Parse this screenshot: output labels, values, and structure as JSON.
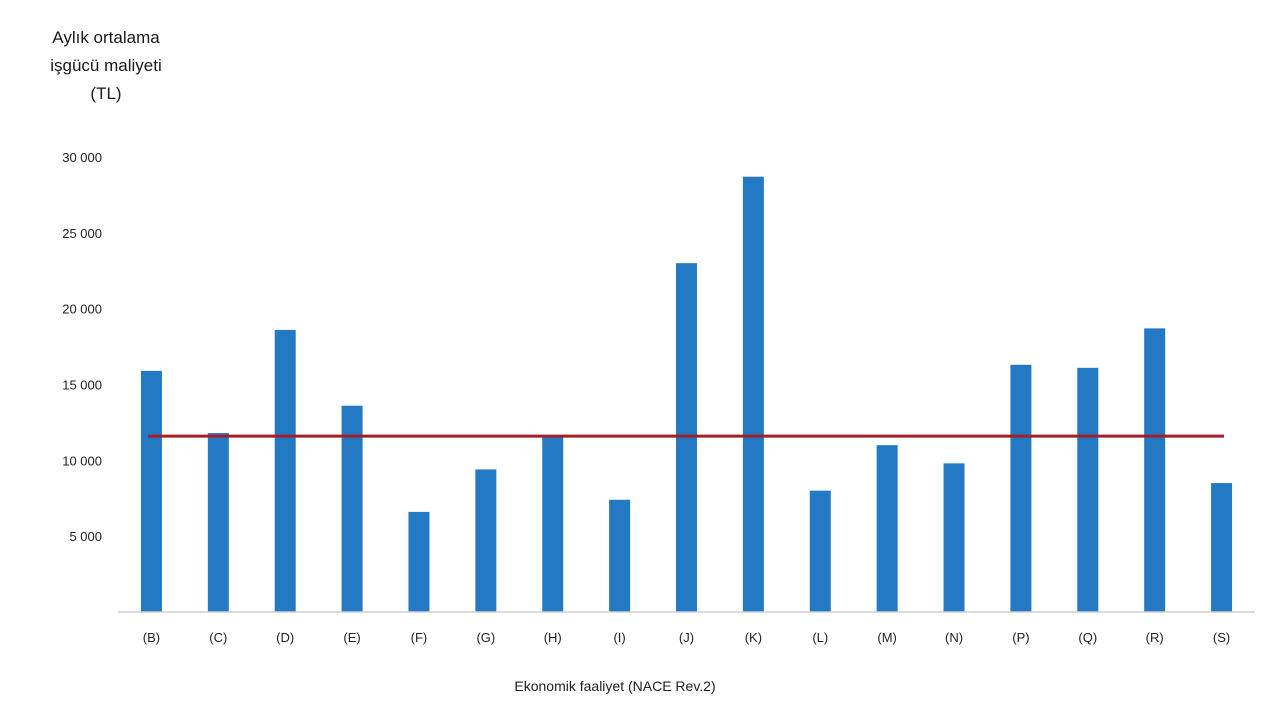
{
  "chart_data": {
    "type": "bar",
    "ylabel_lines": [
      "Aylık ortalama",
      "işgücü maliyeti",
      "(TL)"
    ],
    "xlabel": "Ekonomik faaliyet (NACE Rev.2)",
    "categories": [
      "(B)",
      "(C)",
      "(D)",
      "(E)",
      "(F)",
      "(G)",
      "(H)",
      "(I)",
      "(J)",
      "(K)",
      "(L)",
      "(M)",
      "(N)",
      "(P)",
      "(Q)",
      "(R)",
      "(S)"
    ],
    "values": [
      15900,
      11800,
      18600,
      13600,
      6600,
      9400,
      11600,
      7400,
      23000,
      28700,
      8000,
      11000,
      9800,
      16300,
      16100,
      18700,
      8500
    ],
    "reference_line": 11600,
    "yticks": [
      5000,
      10000,
      15000,
      20000,
      25000,
      30000
    ],
    "ytick_labels": [
      "5 000",
      "10 000",
      "15 000",
      "20 000",
      "25 000",
      "30 000"
    ],
    "ylim": [
      0,
      30000
    ],
    "grid": false,
    "legend": "none",
    "colors": {
      "bar": "#2479c4",
      "reference_line": "#a31f24",
      "axis": "#d0d0d0"
    }
  }
}
